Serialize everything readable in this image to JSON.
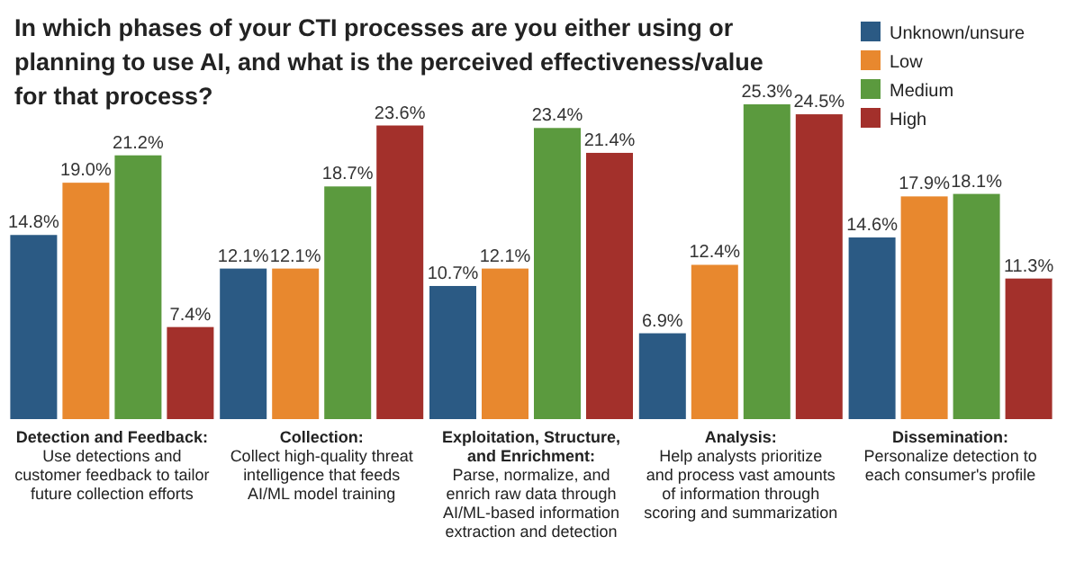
{
  "chart_data": {
    "type": "bar",
    "title": "In which phases of your CTI processes are you either using or planning to use AI, and what is the perceived effectiveness/value for that process?",
    "categories": [
      "Detection and Feedback:\nUse detections and\ncustomer feedback to tailor\nfuture collection efforts",
      "Collection:\nCollect high-quality threat\nintelligence that feeds\nAI/ML model training",
      "Exploitation, Structure,\nand Enrichment:\nParse, normalize, and\nenrich raw data through\nAI/ML-based information\nextraction and detection",
      "Analysis:\nHelp analysts prioritize\nand process vast amounts\nof information through\nscoring and summarization",
      "Dissemination:\nPersonalize detection to\neach consumer's profile"
    ],
    "series": [
      {
        "name": "Unknown/unsure",
        "color": "#2b5a84",
        "values": [
          14.8,
          12.1,
          10.7,
          6.9,
          14.6
        ],
        "value_labels": [
          "14.8%",
          "12.1%",
          "10.7%",
          "6.9%",
          "14.6%"
        ]
      },
      {
        "name": "Low",
        "color": "#e8882e",
        "values": [
          19.0,
          12.1,
          12.1,
          12.4,
          17.9
        ],
        "value_labels": [
          "19.0%",
          "12.1%",
          "12.1%",
          "12.4%",
          "17.9%"
        ]
      },
      {
        "name": "Medium",
        "color": "#5b9a3e",
        "values": [
          21.2,
          18.7,
          23.4,
          25.3,
          18.1
        ],
        "value_labels": [
          "21.2%",
          "18.7%",
          "23.4%",
          "25.3%",
          "18.1%"
        ]
      },
      {
        "name": "High",
        "color": "#a3302b",
        "values": [
          7.4,
          23.6,
          21.4,
          24.5,
          11.3
        ],
        "value_labels": [
          "7.4%",
          "23.6%",
          "21.4%",
          "24.5%",
          "11.3%"
        ]
      }
    ],
    "legend": "top right"
  }
}
